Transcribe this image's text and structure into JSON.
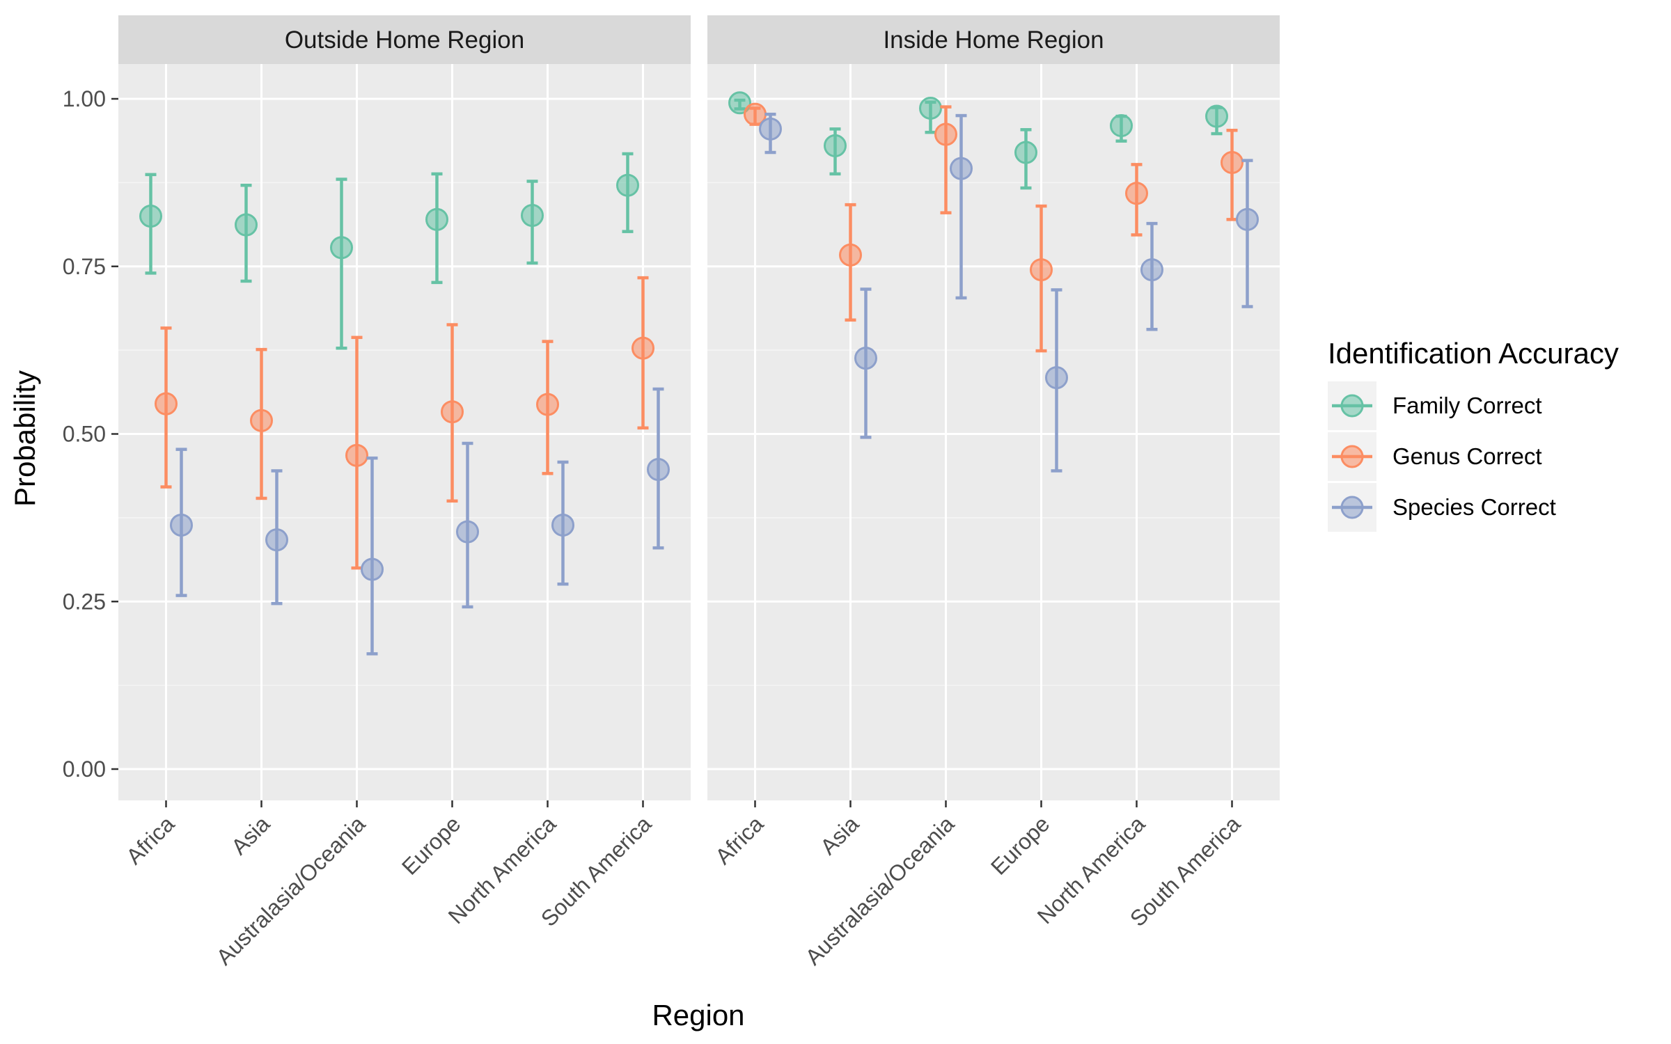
{
  "chart_data": {
    "type": "scatter",
    "title": "",
    "xlabel": "Region",
    "ylabel": "Probability",
    "ylim": [
      -0.05,
      1.1
    ],
    "y_ticks": [
      "0.00",
      "0.25",
      "0.50",
      "0.75",
      "1.00"
    ],
    "grid": true,
    "legend": {
      "title": "Identification Accuracy",
      "placement": "right"
    },
    "categories": [
      "Africa",
      "Asia",
      "Australasia/Oceania",
      "Europe",
      "North America",
      "South America"
    ],
    "panels": [
      {
        "name": "Outside Home Region",
        "series": [
          {
            "name": "Family Correct",
            "color": "#66C2A5",
            "values": [
              0.825,
              0.812,
              0.778,
              0.82,
              0.826,
              0.871
            ],
            "lower": [
              0.74,
              0.728,
              0.628,
              0.726,
              0.755,
              0.802
            ],
            "upper": [
              0.887,
              0.871,
              0.88,
              0.888,
              0.877,
              0.918
            ]
          },
          {
            "name": "Genus Correct",
            "color": "#FC8D62",
            "values": [
              0.545,
              0.52,
              0.468,
              0.533,
              0.544,
              0.628
            ],
            "lower": [
              0.421,
              0.404,
              0.3,
              0.4,
              0.441,
              0.509
            ],
            "upper": [
              0.658,
              0.626,
              0.644,
              0.663,
              0.638,
              0.733
            ]
          },
          {
            "name": "Species Correct",
            "color": "#8DA0CB",
            "values": [
              0.364,
              0.342,
              0.298,
              0.354,
              0.364,
              0.447
            ],
            "lower": [
              0.259,
              0.247,
              0.172,
              0.242,
              0.276,
              0.33
            ],
            "upper": [
              0.477,
              0.445,
              0.464,
              0.486,
              0.458,
              0.567
            ]
          }
        ]
      },
      {
        "name": "Inside Home Region",
        "series": [
          {
            "name": "Family Correct",
            "color": "#66C2A5",
            "values": [
              0.994,
              0.93,
              0.986,
              0.92,
              0.96,
              0.974
            ],
            "lower": [
              0.985,
              0.888,
              0.95,
              0.867,
              0.937,
              0.948
            ],
            "upper": [
              0.998,
              0.955,
              0.995,
              0.954,
              0.974,
              0.987
            ]
          },
          {
            "name": "Genus Correct",
            "color": "#FC8D62",
            "values": [
              0.977,
              0.767,
              0.947,
              0.745,
              0.859,
              0.905
            ],
            "lower": [
              0.962,
              0.67,
              0.83,
              0.624,
              0.797,
              0.82
            ],
            "upper": [
              0.986,
              0.842,
              0.988,
              0.84,
              0.902,
              0.953
            ]
          },
          {
            "name": "Species Correct",
            "color": "#8DA0CB",
            "values": [
              0.955,
              0.613,
              0.896,
              0.584,
              0.745,
              0.82
            ],
            "lower": [
              0.92,
              0.495,
              0.703,
              0.445,
              0.656,
              0.69
            ],
            "upper": [
              0.977,
              0.716,
              0.975,
              0.715,
              0.814,
              0.908
            ]
          }
        ]
      }
    ]
  }
}
